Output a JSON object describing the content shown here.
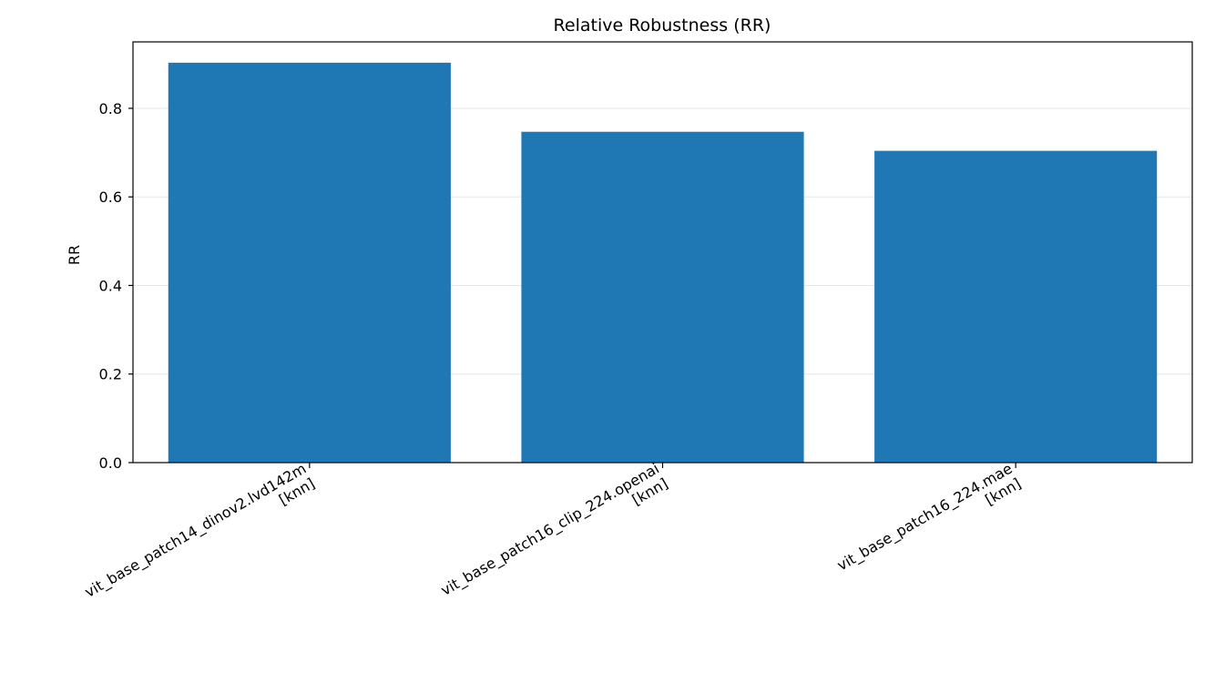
{
  "chart_data": {
    "type": "bar",
    "title": "Relative Robustness (RR)",
    "xlabel": "",
    "ylabel": "RR",
    "categories": [
      [
        "vit_base_patch14_dinov2.lvd142m",
        "[knn]"
      ],
      [
        "vit_base_patch16_clip_224.openai",
        "[knn]"
      ],
      [
        "vit_base_patch16_224.mae",
        "[knn]"
      ]
    ],
    "values": [
      0.903,
      0.747,
      0.704
    ],
    "ylim": [
      0,
      0.95
    ],
    "yticks": [
      0.0,
      0.2,
      0.4,
      0.6,
      0.8
    ],
    "ytick_labels": [
      "0.0",
      "0.2",
      "0.4",
      "0.6",
      "0.8"
    ],
    "grid": "y",
    "legend": "none",
    "colors": {
      "bar": "#1f77b4",
      "grid": "#e6e6e6",
      "axis": "#000000"
    }
  }
}
